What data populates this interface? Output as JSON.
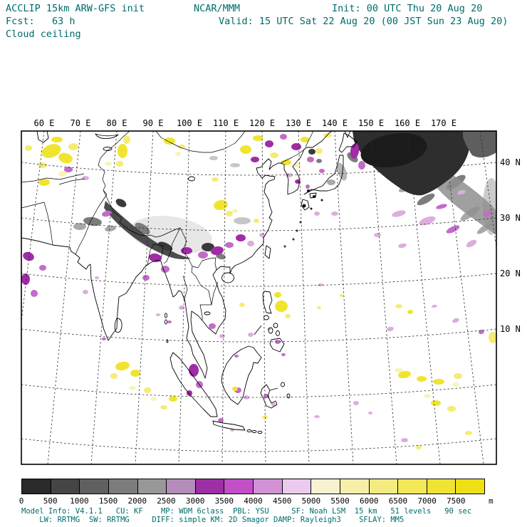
{
  "header": {
    "title": "ACCLIP 15km ARW-GFS init",
    "org": "NCAR/MMM",
    "init": "Init: 00 UTC Thu 20 Aug 20",
    "fcst": "Fcst:   63 h",
    "valid": "Valid: 15 UTC Sat 22 Aug 20 (00 JST Sun 23 Aug 20)",
    "field": "Cloud ceiling"
  },
  "map": {
    "lon_labels": [
      "60 E",
      "70 E",
      "80 E",
      "90 E",
      "100 E",
      "110 E",
      "120 E",
      "130 E",
      "140 E",
      "150 E",
      "160 E",
      "170 E"
    ],
    "lat_labels": [
      "40 N",
      "30 N",
      "20 N",
      "10 N"
    ]
  },
  "colorbar": {
    "tick_labels": [
      "0",
      "500",
      "1000",
      "1500",
      "2000",
      "2500",
      "3000",
      "3500",
      "4000",
      "4500",
      "5000",
      "5500",
      "6000",
      "6500",
      "7000",
      "7500"
    ],
    "unit": "m",
    "colors": [
      "#2a2a2a",
      "#454545",
      "#606060",
      "#7c7c7c",
      "#989898",
      "#b48cba",
      "#9c2fa4",
      "#c24ec8",
      "#d392d6",
      "#eccaed",
      "#f7f2d0",
      "#f6efaa",
      "#f4ec80",
      "#f2e858",
      "#f0e433",
      "#eee015"
    ]
  },
  "footer": {
    "line1": "Model Info: V4.1.1   CU: KF    MP: WDM 6class  PBL: YSU     SF: Noah LSM  15 km   51 levels   90 sec",
    "line2": "    LW: RRTMG  SW: RRTMG     DIFF: simple KM: 2D Smagor DAMP: Rayleigh3    SFLAY: MM5"
  },
  "colors": {
    "text": "#006b6b",
    "axis_text": "#000000"
  }
}
